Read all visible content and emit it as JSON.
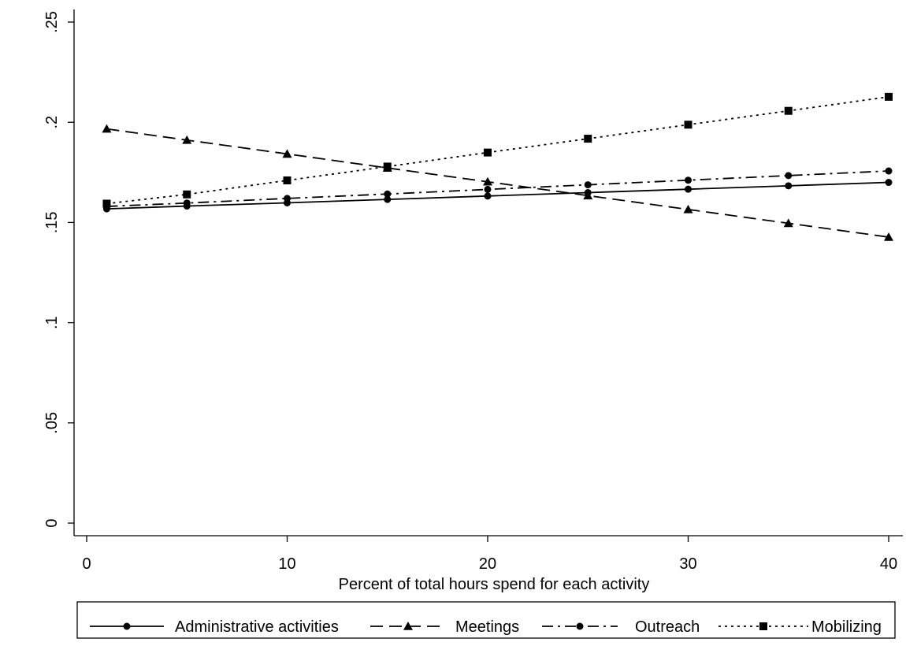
{
  "chart_data": {
    "type": "line",
    "title": "",
    "xlabel": "Percent of total hours spend for each activity",
    "ylabel": "",
    "xlim": [
      0,
      40
    ],
    "ylim": [
      0,
      0.25
    ],
    "x_ticks": [
      {
        "value": 0,
        "label": "0"
      },
      {
        "value": 10,
        "label": "10"
      },
      {
        "value": 20,
        "label": "20"
      },
      {
        "value": 30,
        "label": "30"
      },
      {
        "value": 40,
        "label": "40"
      }
    ],
    "y_ticks": [
      {
        "value": 0,
        "label": "0"
      },
      {
        "value": 0.05,
        "label": ".05"
      },
      {
        "value": 0.1,
        "label": ".1"
      },
      {
        "value": 0.15,
        "label": ".15"
      },
      {
        "value": 0.2,
        "label": ".2"
      },
      {
        "value": 0.25,
        "label": ".25"
      }
    ],
    "grid": false,
    "legend_position": "bottom",
    "x": [
      1,
      5,
      10,
      15,
      20,
      25,
      30,
      35,
      40
    ],
    "series": [
      {
        "name": "Administrative activities",
        "marker": "circle",
        "dash": "solid",
        "values": [
          0.1568,
          0.1582,
          0.1598,
          0.1615,
          0.1632,
          0.1649,
          0.1666,
          0.1683,
          0.17
        ]
      },
      {
        "name": "Meetings",
        "marker": "triangle",
        "dash": "dash",
        "values": [
          0.1967,
          0.1911,
          0.1842,
          0.1772,
          0.1703,
          0.1634,
          0.1565,
          0.1496,
          0.1427
        ]
      },
      {
        "name": "Outreach",
        "marker": "circle",
        "dash": "dashdot",
        "values": [
          0.158,
          0.1597,
          0.162,
          0.1642,
          0.1665,
          0.1688,
          0.1711,
          0.1734,
          0.1757
        ]
      },
      {
        "name": "Mobilizing",
        "marker": "square",
        "dash": "dot",
        "values": [
          0.1594,
          0.164,
          0.171,
          0.1779,
          0.1849,
          0.1918,
          0.1988,
          0.2057,
          0.2127
        ]
      }
    ]
  }
}
